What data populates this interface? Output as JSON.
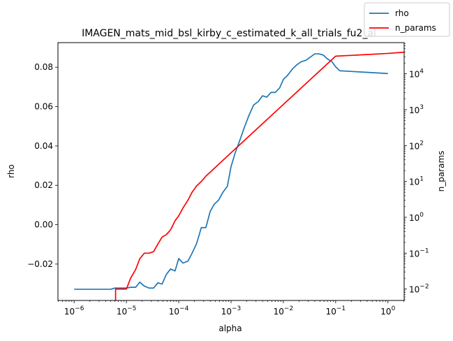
{
  "chart_data": {
    "type": "line",
    "title": "IMAGEN_mats_mid_bsl_kirby_c_estimated_k_all_trials_fu2_al",
    "xlabel": "alpha",
    "ylabel": "rho",
    "y2label": "n_params",
    "xscale": "log",
    "y2scale": "log",
    "xlim": [
      4.9e-07,
      2.04
    ],
    "ylim": [
      -0.0385,
      0.0925
    ],
    "y2lim": [
      0.0048,
      74000
    ],
    "grid": false,
    "legend_position": "top-right",
    "x_ticks": [
      {
        "value": 1e-06,
        "base": "10",
        "exp": "−6"
      },
      {
        "value": 1e-05,
        "base": "10",
        "exp": "−5"
      },
      {
        "value": 0.0001,
        "base": "10",
        "exp": "−4"
      },
      {
        "value": 0.001,
        "base": "10",
        "exp": "−3"
      },
      {
        "value": 0.01,
        "base": "10",
        "exp": "−2"
      },
      {
        "value": 0.1,
        "base": "10",
        "exp": "−1"
      },
      {
        "value": 1,
        "base": "10",
        "exp": "0"
      }
    ],
    "y_ticks": [
      {
        "value": -0.02,
        "label": "−0.02"
      },
      {
        "value": 0.0,
        "label": "0.00"
      },
      {
        "value": 0.02,
        "label": "0.02"
      },
      {
        "value": 0.04,
        "label": "0.04"
      },
      {
        "value": 0.06,
        "label": "0.06"
      },
      {
        "value": 0.08,
        "label": "0.08"
      }
    ],
    "y2_ticks": [
      {
        "value": 0.01,
        "base": "10",
        "exp": "−2"
      },
      {
        "value": 0.1,
        "base": "10",
        "exp": "−1"
      },
      {
        "value": 1,
        "base": "10",
        "exp": "0"
      },
      {
        "value": 10,
        "base": "10",
        "exp": "1"
      },
      {
        "value": 100,
        "base": "10",
        "exp": "2"
      },
      {
        "value": 1000,
        "base": "10",
        "exp": "3"
      },
      {
        "value": 10000,
        "base": "10",
        "exp": "4"
      }
    ],
    "series": [
      {
        "name": "rho",
        "axis": "left",
        "color": "#1f77b4",
        "points": [
          [
            1e-06,
            -0.0328
          ],
          [
            2e-06,
            -0.0328
          ],
          [
            3e-06,
            -0.0328
          ],
          [
            4e-06,
            -0.0328
          ],
          [
            5e-06,
            -0.0328
          ],
          [
            6e-06,
            -0.0322
          ],
          [
            8e-06,
            -0.0322
          ],
          [
            1e-05,
            -0.0322
          ],
          [
            1.2e-05,
            -0.0318
          ],
          [
            1.5e-05,
            -0.0318
          ],
          [
            1.8e-05,
            -0.0292
          ],
          [
            2.2e-05,
            -0.0312
          ],
          [
            2.7e-05,
            -0.0322
          ],
          [
            3.3e-05,
            -0.0322
          ],
          [
            4e-05,
            -0.0295
          ],
          [
            4.8e-05,
            -0.0302
          ],
          [
            5.8e-05,
            -0.0252
          ],
          [
            7e-05,
            -0.0225
          ],
          [
            8.5e-05,
            -0.0235
          ],
          [
            0.0001,
            -0.0172
          ],
          [
            0.00012,
            -0.0195
          ],
          [
            0.00015,
            -0.0185
          ],
          [
            0.00018,
            -0.0145
          ],
          [
            0.00022,
            -0.0095
          ],
          [
            0.00027,
            -0.0015
          ],
          [
            0.00033,
            -0.0015
          ],
          [
            0.0004,
            0.0068
          ],
          [
            0.00048,
            0.0105
          ],
          [
            0.00058,
            0.0125
          ],
          [
            0.0007,
            0.0165
          ],
          [
            0.00085,
            0.0195
          ],
          [
            0.001,
            0.0295
          ],
          [
            0.0012,
            0.0365
          ],
          [
            0.0015,
            0.0435
          ],
          [
            0.0018,
            0.0495
          ],
          [
            0.0022,
            0.0555
          ],
          [
            0.0027,
            0.0608
          ],
          [
            0.0033,
            0.0625
          ],
          [
            0.004,
            0.0655
          ],
          [
            0.0048,
            0.0648
          ],
          [
            0.0058,
            0.0672
          ],
          [
            0.007,
            0.0672
          ],
          [
            0.0085,
            0.0695
          ],
          [
            0.01,
            0.0738
          ],
          [
            0.012,
            0.0758
          ],
          [
            0.015,
            0.0792
          ],
          [
            0.018,
            0.0812
          ],
          [
            0.022,
            0.0828
          ],
          [
            0.027,
            0.0835
          ],
          [
            0.033,
            0.0852
          ],
          [
            0.04,
            0.0868
          ],
          [
            0.048,
            0.0868
          ],
          [
            0.058,
            0.0862
          ],
          [
            0.07,
            0.0842
          ],
          [
            0.085,
            0.0828
          ],
          [
            0.1,
            0.0802
          ],
          [
            0.12,
            0.0782
          ],
          [
            1.0,
            0.0768
          ]
        ]
      },
      {
        "name": "n_params",
        "axis": "right",
        "color": "#ff0000",
        "points": [
          [
            6.2e-06,
            0.0048
          ],
          [
            6.2e-06,
            0.01
          ],
          [
            1e-05,
            0.01
          ],
          [
            1.2e-05,
            0.02
          ],
          [
            1.5e-05,
            0.035
          ],
          [
            1.8e-05,
            0.07
          ],
          [
            2.2e-05,
            0.1
          ],
          [
            2.7e-05,
            0.1
          ],
          [
            3.3e-05,
            0.11
          ],
          [
            4e-05,
            0.18
          ],
          [
            4.8e-05,
            0.28
          ],
          [
            5.8e-05,
            0.33
          ],
          [
            7e-05,
            0.45
          ],
          [
            8.5e-05,
            0.8
          ],
          [
            0.0001,
            1.1
          ],
          [
            0.00012,
            1.8
          ],
          [
            0.00015,
            3.0
          ],
          [
            0.00018,
            5.0
          ],
          [
            0.00022,
            7.5
          ],
          [
            0.00027,
            10
          ],
          [
            0.00033,
            14
          ],
          [
            0.001,
            63
          ],
          [
            0.01,
            1400
          ],
          [
            0.1,
            31000
          ],
          [
            1.0,
            37000
          ],
          [
            2.0,
            40000
          ]
        ]
      }
    ]
  }
}
